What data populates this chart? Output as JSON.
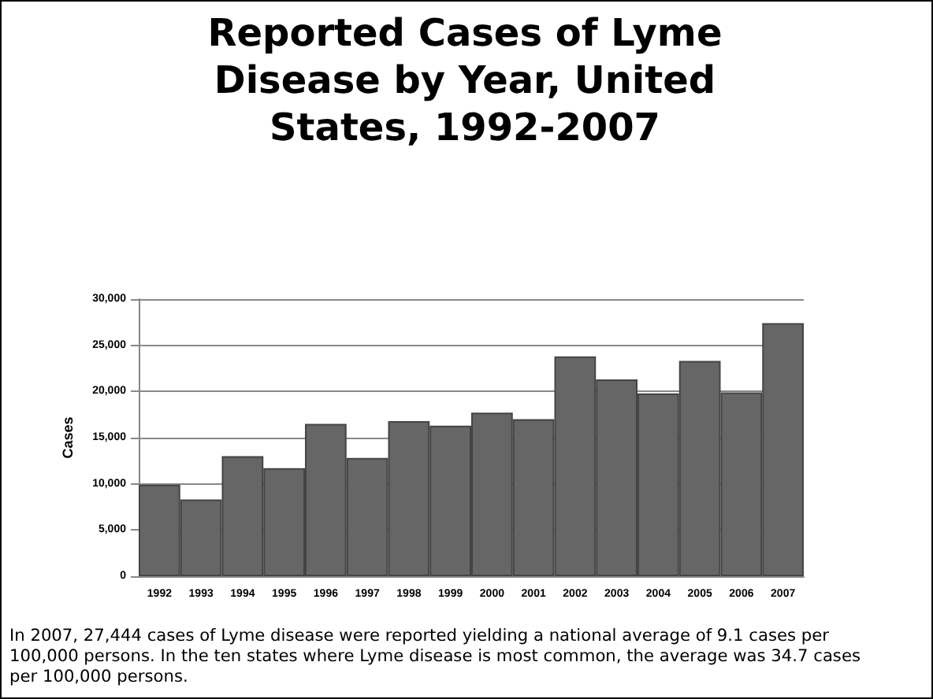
{
  "chart_data": {
    "type": "bar",
    "title": "Reported Cases of Lyme Disease by Year, United States, 1992-2007",
    "ylabel": "Cases",
    "categories": [
      "1992",
      "1993",
      "1994",
      "1995",
      "1996",
      "1997",
      "1998",
      "1999",
      "2000",
      "2001",
      "2002",
      "2003",
      "2004",
      "2005",
      "2006",
      "2007"
    ],
    "values": [
      9900,
      8300,
      13000,
      11700,
      16500,
      12800,
      16800,
      16300,
      17700,
      17000,
      23800,
      21300,
      19800,
      23300,
      19900,
      27400
    ],
    "color": "#666666",
    "ylim": [
      0,
      30000
    ],
    "yticks": [
      0,
      {
        "value": 5000,
        "label": "5,000"
      },
      {
        "value": 10000,
        "label": "10,000"
      },
      {
        "value": 15000,
        "label": "15,000"
      },
      {
        "value": 20000,
        "label": "20,000"
      },
      {
        "value": 25000,
        "label": "25,000"
      },
      {
        "value": 30000,
        "label": "30,000"
      }
    ],
    "grid": "y",
    "annotations": [
      "In 2007, 27,444 cases of Lyme disease were reported yielding a national average of 9.1 cases per 100,000 persons. In the ten states where Lyme disease is most common, the average was 34.7 cases per 100,000 persons."
    ]
  }
}
